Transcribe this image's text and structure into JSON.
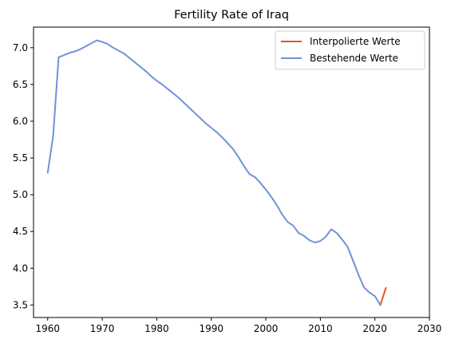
{
  "chart_data": {
    "type": "line",
    "title": "Fertility Rate of Iraq",
    "xlabel": "",
    "ylabel": "",
    "xlim": [
      1957.4,
      2030
    ],
    "ylim": [
      3.33,
      7.28
    ],
    "xticks": [
      1960,
      1970,
      1980,
      1990,
      2000,
      2010,
      2020,
      2030
    ],
    "yticks": [
      3.5,
      4.0,
      4.5,
      5.0,
      5.5,
      6.0,
      6.5,
      7.0
    ],
    "xtick_labels": [
      "1960",
      "1970",
      "1980",
      "1990",
      "2000",
      "2010",
      "2020",
      "2030"
    ],
    "ytick_labels": [
      "3.5",
      "4.0",
      "4.5",
      "5.0",
      "5.5",
      "6.0",
      "6.5",
      "7.0"
    ],
    "grid": false,
    "legend_position": "top-right",
    "series": [
      {
        "name": "Interpolierte Werte",
        "color": "#e8531f",
        "x": [
          2021,
          2022
        ],
        "y": [
          3.5,
          3.73
        ]
      },
      {
        "name": "Bestehende Werte",
        "color": "#6f93d8",
        "x": [
          1960,
          1961,
          1962,
          1963,
          1964,
          1965,
          1966,
          1967,
          1968,
          1969,
          1970,
          1971,
          1972,
          1973,
          1974,
          1975,
          1976,
          1977,
          1978,
          1979,
          1980,
          1981,
          1982,
          1983,
          1984,
          1985,
          1986,
          1987,
          1988,
          1989,
          1990,
          1991,
          1992,
          1993,
          1994,
          1995,
          1996,
          1997,
          1998,
          1999,
          2000,
          2001,
          2002,
          2003,
          2004,
          2005,
          2006,
          2007,
          2008,
          2009,
          2010,
          2011,
          2012,
          2013,
          2014,
          2015,
          2016,
          2017,
          2018,
          2019,
          2020,
          2021
        ],
        "y": [
          5.3,
          5.8,
          6.87,
          6.9,
          6.93,
          6.95,
          6.98,
          7.02,
          7.06,
          7.1,
          7.08,
          7.05,
          7.0,
          6.96,
          6.92,
          6.86,
          6.8,
          6.74,
          6.68,
          6.61,
          6.55,
          6.5,
          6.44,
          6.38,
          6.32,
          6.25,
          6.18,
          6.11,
          6.04,
          5.97,
          5.91,
          5.85,
          5.78,
          5.7,
          5.62,
          5.51,
          5.39,
          5.28,
          5.24,
          5.16,
          5.07,
          4.97,
          4.86,
          4.73,
          4.63,
          4.58,
          4.48,
          4.44,
          4.38,
          4.35,
          4.37,
          4.43,
          4.53,
          4.48,
          4.39,
          4.29,
          4.1,
          3.91,
          3.74,
          3.67,
          3.62,
          3.5
        ]
      }
    ]
  }
}
